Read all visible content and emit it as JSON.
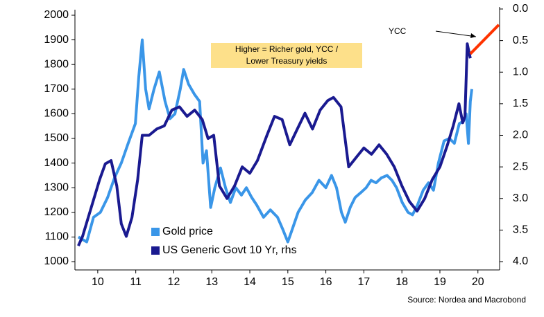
{
  "chart_data": {
    "type": "line",
    "annotation": "Higher = Richer gold, YCC / Lower Treasury yields",
    "callout": "YCC",
    "source": "Source: Nordea and Macrobond",
    "xlim": [
      9.4,
      20.57
    ],
    "xticks": [
      10,
      11,
      12,
      13,
      14,
      15,
      16,
      17,
      18,
      19,
      20
    ],
    "ylim": [
      1000,
      2000
    ],
    "yticks": [
      1000,
      1100,
      1200,
      1300,
      1400,
      1500,
      1600,
      1700,
      1800,
      1900,
      2000
    ],
    "y2lim": [
      0,
      4
    ],
    "y2_inverted": true,
    "y2ticks": [
      {
        "value": 0,
        "label": "0.0"
      },
      0.5,
      {
        "value": 1,
        "label": "1.0"
      },
      1.5,
      {
        "value": 2,
        "label": "2.0"
      },
      2.5,
      {
        "value": 3,
        "label": "3.0"
      },
      3.5,
      {
        "value": 4,
        "label": "4.0"
      }
    ],
    "series": [
      {
        "name": "Gold price",
        "color": "#3a96e8",
        "x": [
          9.49,
          9.71,
          9.89,
          10.07,
          10.26,
          10.44,
          10.62,
          10.8,
          10.99,
          11.08,
          11.17,
          11.26,
          11.35,
          11.48,
          11.62,
          11.77,
          11.9,
          12.03,
          12.17,
          12.26,
          12.39,
          12.54,
          12.68,
          12.77,
          12.86,
          12.97,
          13.08,
          13.23,
          13.36,
          13.49,
          13.63,
          13.78,
          13.91,
          14.05,
          14.18,
          14.36,
          14.54,
          14.73,
          14.87,
          15.0,
          15.09,
          15.27,
          15.46,
          15.64,
          15.82,
          16.0,
          16.15,
          16.28,
          16.41,
          16.51,
          16.64,
          16.77,
          16.92,
          17.06,
          17.19,
          17.32,
          17.46,
          17.61,
          17.74,
          17.86,
          18.01,
          18.16,
          18.28,
          18.41,
          18.56,
          18.7,
          18.83,
          18.96,
          19.11,
          19.25,
          19.38,
          19.51,
          19.62,
          19.69,
          19.75,
          19.8,
          19.84
        ],
        "values": [
          1100,
          1080,
          1180,
          1200,
          1260,
          1340,
          1400,
          1480,
          1560,
          1750,
          1900,
          1700,
          1620,
          1700,
          1770,
          1650,
          1580,
          1600,
          1700,
          1780,
          1720,
          1680,
          1650,
          1400,
          1450,
          1220,
          1300,
          1380,
          1300,
          1240,
          1300,
          1270,
          1300,
          1260,
          1230,
          1180,
          1210,
          1180,
          1130,
          1080,
          1120,
          1200,
          1250,
          1280,
          1330,
          1300,
          1350,
          1300,
          1200,
          1160,
          1220,
          1260,
          1280,
          1300,
          1330,
          1320,
          1340,
          1350,
          1330,
          1300,
          1240,
          1200,
          1190,
          1230,
          1290,
          1320,
          1290,
          1400,
          1490,
          1500,
          1480,
          1560,
          1570,
          1600,
          1480,
          1650,
          1700
        ]
      },
      {
        "name": "US Generic Govt 10 Yr, rhs",
        "color": "#1a1a90",
        "axis": "y2",
        "x": [
          9.49,
          9.6,
          9.75,
          9.9,
          10.05,
          10.2,
          10.35,
          10.5,
          10.62,
          10.75,
          10.9,
          11.05,
          11.17,
          11.35,
          11.55,
          11.75,
          11.95,
          12.15,
          12.35,
          12.55,
          12.75,
          12.9,
          13.05,
          13.2,
          13.4,
          13.6,
          13.8,
          14.0,
          14.2,
          14.45,
          14.65,
          14.85,
          15.05,
          15.25,
          15.45,
          15.65,
          15.85,
          16.05,
          16.2,
          16.4,
          16.6,
          16.8,
          17.0,
          17.2,
          17.4,
          17.6,
          17.8,
          18.0,
          18.2,
          18.4,
          18.6,
          18.8,
          19.0,
          19.2,
          19.35,
          19.5,
          19.6,
          19.66,
          19.72,
          19.8
        ],
        "values": [
          3.75,
          3.6,
          3.3,
          3.0,
          2.7,
          2.45,
          2.4,
          2.8,
          3.4,
          3.6,
          3.3,
          2.7,
          2.0,
          2.0,
          1.9,
          1.85,
          1.6,
          1.55,
          1.7,
          1.6,
          1.75,
          2.05,
          2.0,
          2.8,
          3.0,
          2.8,
          2.5,
          2.6,
          2.4,
          2.0,
          1.7,
          1.75,
          2.15,
          1.9,
          1.65,
          1.9,
          1.6,
          1.45,
          1.4,
          1.55,
          2.5,
          2.35,
          2.2,
          2.3,
          2.15,
          2.3,
          2.5,
          2.8,
          3.05,
          3.2,
          3.0,
          2.7,
          2.5,
          2.15,
          1.85,
          1.5,
          1.8,
          1.7,
          0.55,
          0.78
        ]
      }
    ],
    "projection": {
      "color": "#ff3300",
      "axis": "y2",
      "x": [
        19.8,
        20.55
      ],
      "values": [
        0.71,
        0.25
      ]
    }
  }
}
